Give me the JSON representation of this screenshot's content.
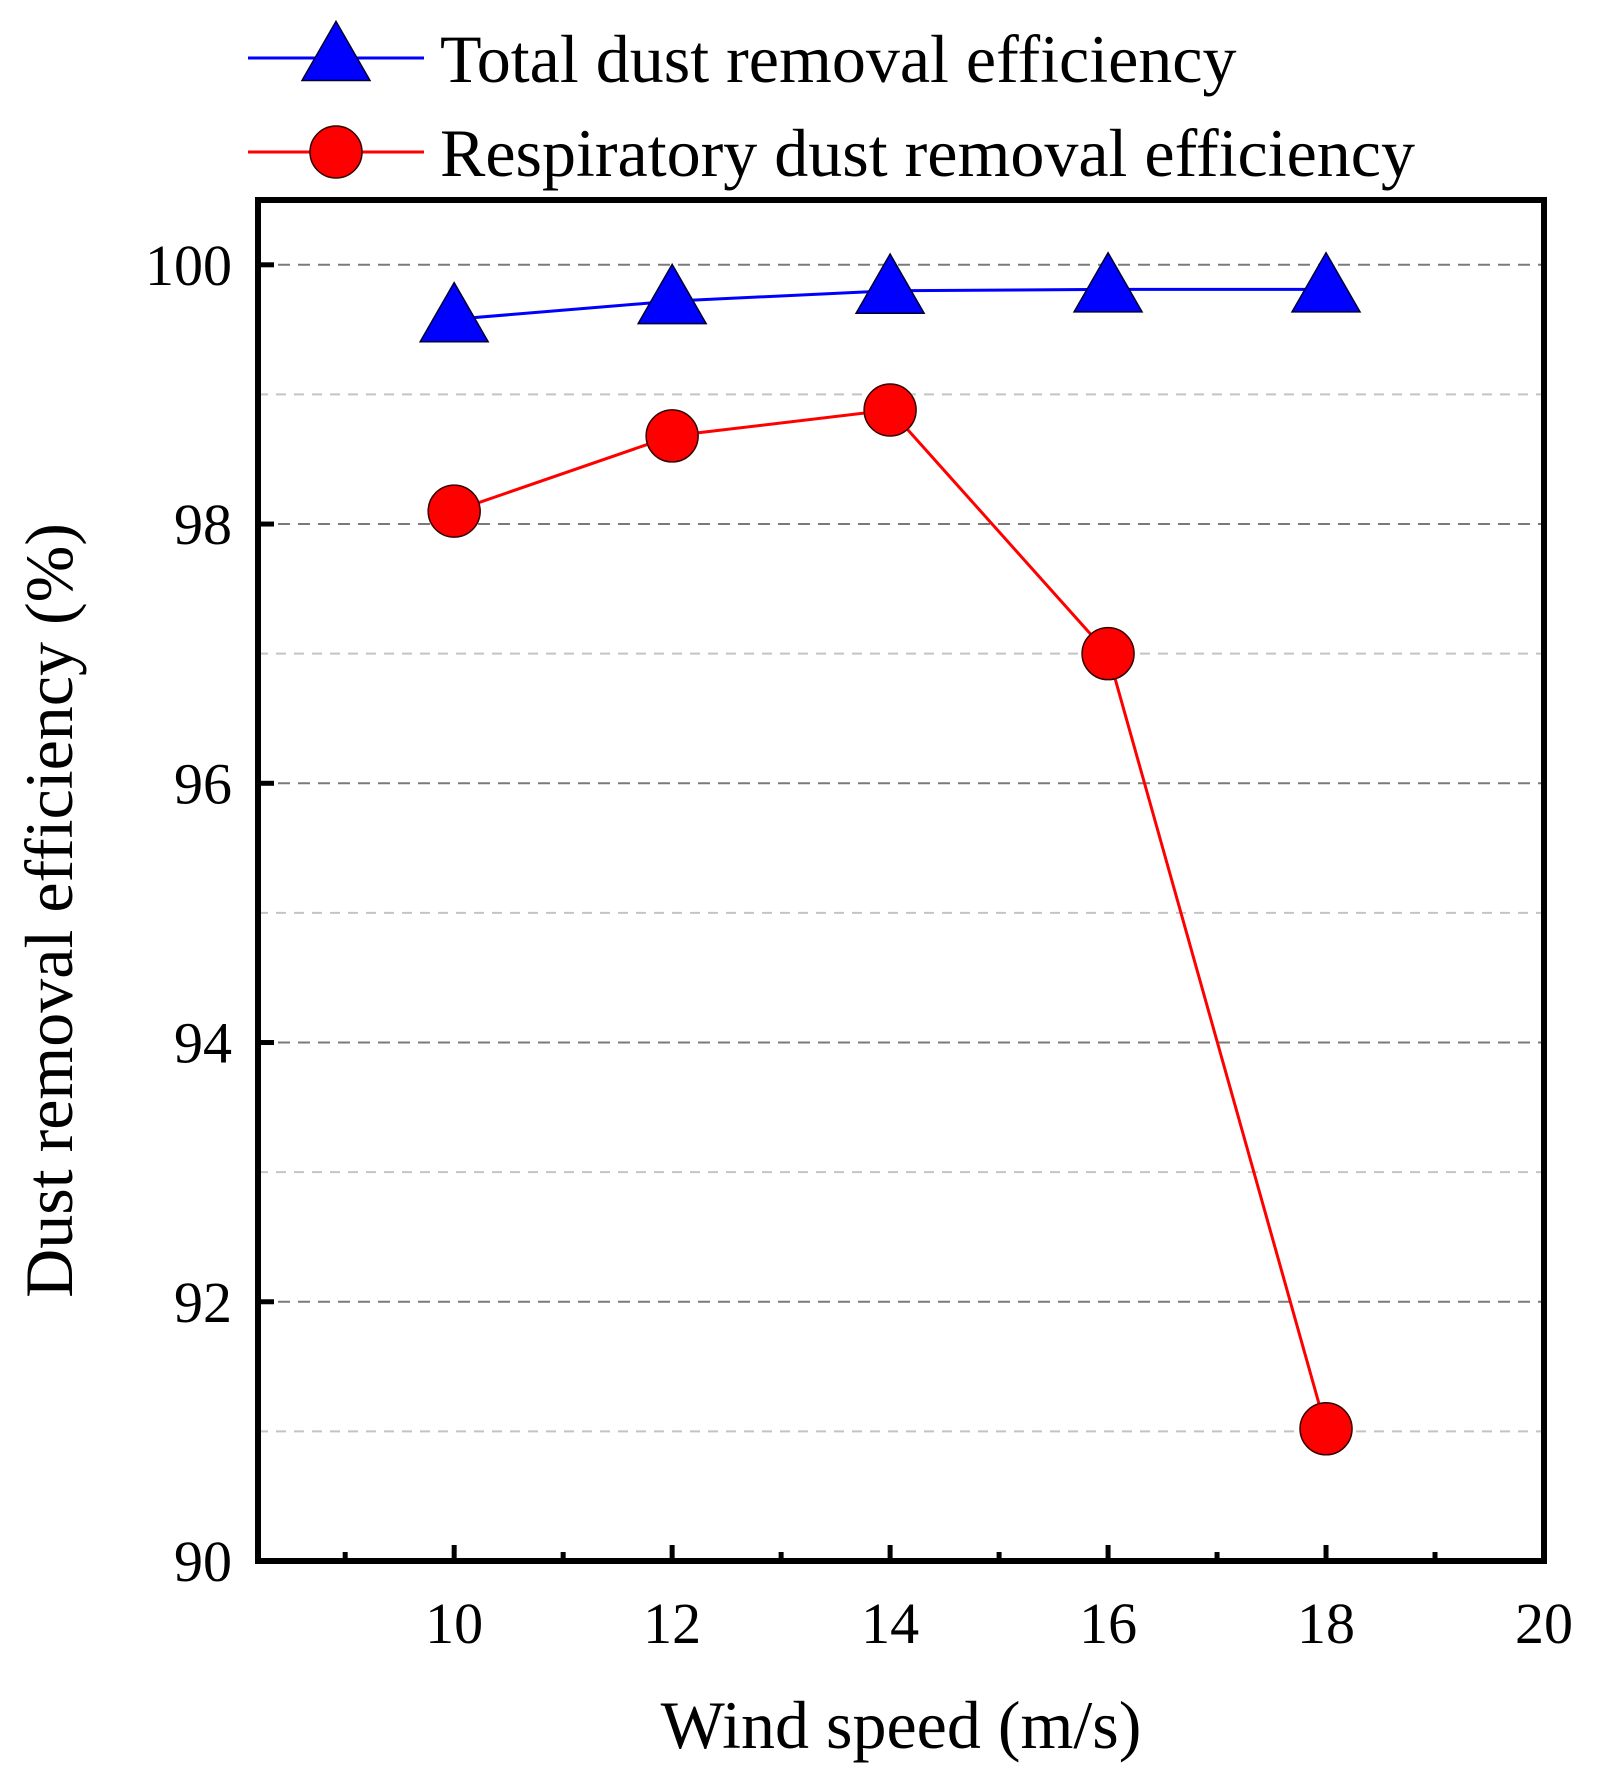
{
  "chart_data": {
    "type": "line",
    "xlabel": "Wind speed (m/s)",
    "ylabel": "Dust removal efficiency (%)",
    "xlim": [
      8.2,
      20
    ],
    "ylim": [
      90,
      100.5
    ],
    "x_ticks": [
      "10",
      "12",
      "14",
      "16",
      "18",
      "20"
    ],
    "y_ticks": [
      "90",
      "92",
      "94",
      "96",
      "98",
      "100"
    ],
    "x_minor_ticks": [
      9,
      11,
      13,
      15,
      17,
      19
    ],
    "y_gridlines": [
      91,
      92,
      93,
      94,
      95,
      96,
      97,
      98,
      99,
      100
    ],
    "grid": true,
    "legend_position": "top",
    "categories": [
      "10",
      "12",
      "14",
      "16",
      "18"
    ],
    "series": [
      {
        "name": "Total dust removal efficiency",
        "marker": "triangle",
        "color": "#0000ff",
        "x": [
          10,
          12,
          14,
          16,
          18
        ],
        "values": [
          99.58,
          99.72,
          99.8,
          99.81,
          99.81
        ]
      },
      {
        "name": "Respiratory dust removal efficiency",
        "marker": "circle",
        "color": "#ff0000",
        "x": [
          10,
          12,
          14,
          16,
          18
        ],
        "values": [
          98.1,
          98.68,
          98.88,
          97.0,
          91.02
        ]
      }
    ]
  }
}
